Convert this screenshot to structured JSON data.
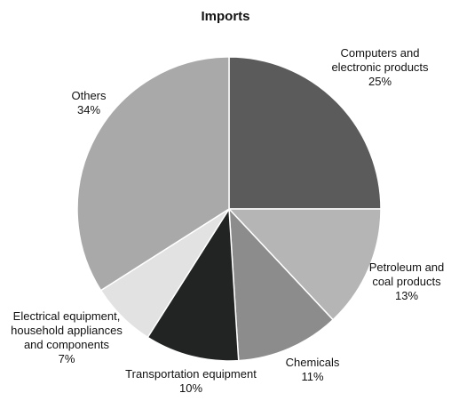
{
  "chart_data": {
    "type": "pie",
    "title": "Imports",
    "categories": [
      "Computers and electronic products",
      "Petroleum and coal products",
      "Chemicals",
      "Transportation equipment",
      "Electrical equipment, household appliances and components",
      "Others"
    ],
    "values": [
      25,
      13,
      11,
      10,
      7,
      34
    ],
    "value_labels": [
      "25%",
      "13%",
      "11%",
      "10%",
      "7%",
      "34%"
    ],
    "colors": [
      "#5b5b5b",
      "#b5b5b5",
      "#8c8c8c",
      "#222423",
      "#e2e2e2",
      "#a9a9a9"
    ]
  }
}
